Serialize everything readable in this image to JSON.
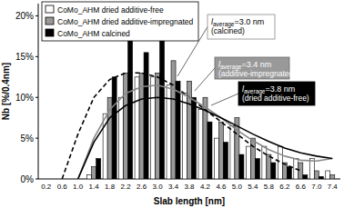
{
  "chart_data": {
    "type": "bar",
    "x_label": "Slab length [nm]",
    "y_label": "Nb [%/0.4nm]",
    "categories": [
      "0.2",
      "0.6",
      "1.0",
      "1.4",
      "1.8",
      "2.2",
      "2.6",
      "3.0",
      "3.4",
      "3.8",
      "4.2",
      "4.6",
      "5.0",
      "5.4",
      "5.8",
      "6.2",
      "6.6",
      "7.0",
      "7.4"
    ],
    "series": [
      {
        "name": "CoMo_AHM dried additive-free",
        "type": "bar",
        "color": "#ffffff",
        "values": [
          0,
          0,
          0,
          0.5,
          8,
          10,
          12.5,
          12.5,
          11.5,
          10.5,
          8.5,
          5,
          6.5,
          4,
          4,
          4,
          2.5,
          2.5,
          1
        ]
      },
      {
        "name": "CoMo_AHM dried additive-impregnated",
        "type": "bar",
        "color": "#999999",
        "values": [
          0,
          0,
          0,
          1.5,
          10,
          13,
          13,
          13,
          14.5,
          12,
          10,
          7,
          7.5,
          5,
          3,
          2,
          2,
          1,
          0.5
        ]
      },
      {
        "name": "CoMo_AHM calcined",
        "type": "bar",
        "color": "#000000",
        "values": [
          0,
          0,
          0,
          2.5,
          12.5,
          17,
          15.5,
          19,
          12,
          10,
          7,
          4.5,
          3,
          2.5,
          2,
          1.5,
          0.5,
          0.3,
          0
        ]
      },
      {
        "type": "line",
        "color": "#000000",
        "line_style": "dashed",
        "values": [
          null,
          0,
          5.5,
          10,
          12.2,
          13,
          13,
          12.5,
          11.5,
          10,
          8.5,
          7,
          5.5,
          4,
          2.8,
          1.8,
          1,
          null,
          null
        ]
      },
      {
        "type": "line",
        "color": "#888888",
        "line_style": "solid",
        "values": [
          null,
          null,
          0,
          5,
          8.5,
          10.5,
          11.3,
          11.5,
          11,
          10,
          8.8,
          7.5,
          6,
          4.7,
          3.6,
          2.8,
          2.3,
          2.2,
          2.5
        ]
      },
      {
        "type": "line",
        "color": "#000000",
        "line_style": "solid",
        "values": [
          null,
          null,
          0,
          4.5,
          7.5,
          9,
          9.8,
          10,
          9.8,
          9.2,
          8.4,
          7.5,
          6.5,
          5.5,
          4.6,
          3.8,
          3.2,
          2.8,
          2.5
        ]
      }
    ],
    "ylim": [
      0,
      21.5
    ],
    "yticks": [
      {
        "value": 0,
        "label": "0%"
      },
      {
        "value": 5,
        "label": "5%"
      },
      {
        "value": 10,
        "label": "10%"
      },
      {
        "value": 15,
        "label": "15%"
      },
      {
        "value": 20,
        "label": "20%"
      }
    ],
    "legend": "top-left",
    "grid": false,
    "annotations": [
      {
        "symbol": "l",
        "subscript": "average",
        "text": "=3.0 nm",
        "note": "(calcined)"
      },
      {
        "symbol": "l",
        "subscript": "average",
        "text": "=3.4 nm",
        "note": "(additive-impregnated)"
      },
      {
        "symbol": "l",
        "subscript": "average",
        "text": "=3.8 nm",
        "note": "(dried additive-free)"
      }
    ]
  }
}
